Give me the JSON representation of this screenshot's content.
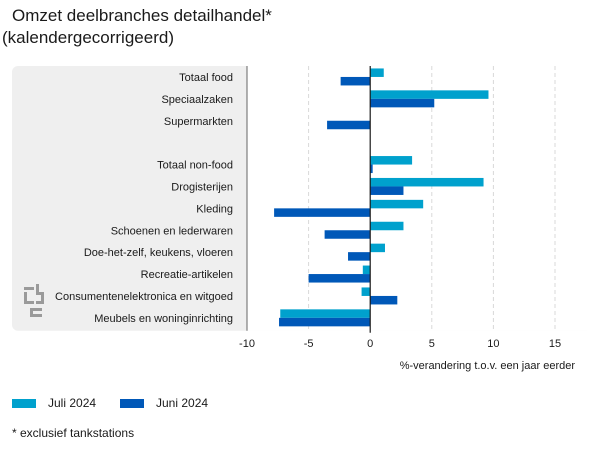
{
  "title_line1": "Omzet deelbranches detailhandel*",
  "title_line2": "(kalendergecorrigeerd)",
  "footnote": "* exclusief tankstations",
  "colors": {
    "juli": "#00a1cd",
    "juni": "#0058b8",
    "panel": "#efefef",
    "axis": "#666666",
    "grid": "#d9d9d9"
  },
  "legend_icon": "cbs-logo-icon",
  "chart_data": {
    "type": "bar",
    "orientation": "horizontal",
    "categories": [
      "Totaal food",
      "Speciaalzaken",
      "Supermarkten",
      "",
      "Totaal non-food",
      "Drogisterijen",
      "Kleding",
      "Schoenen en lederwaren",
      "Doe-het-zelf, keukens, vloeren",
      "Recreatie-artikelen",
      "Consumentenelektronica en witgoed",
      "Meubels en woninginrichting"
    ],
    "series": [
      {
        "name": "Juli 2024",
        "color": "#00a1cd",
        "values": [
          1.1,
          9.6,
          null,
          null,
          3.4,
          9.2,
          4.3,
          2.7,
          1.2,
          -0.6,
          -0.7,
          -7.3
        ]
      },
      {
        "name": "Juni 2024",
        "color": "#0058b8",
        "values": [
          -2.4,
          5.2,
          -3.5,
          null,
          0.2,
          2.7,
          -7.8,
          -3.7,
          -1.8,
          -5.0,
          2.2,
          -7.4
        ]
      }
    ],
    "xlim": [
      -10,
      15
    ],
    "xticks": [
      -10,
      -5,
      0,
      5,
      10,
      15
    ],
    "xlabel": "%-verandering t.o.v. een jaar eerder",
    "grid": "vertical",
    "legend_position": "bottom-left"
  }
}
